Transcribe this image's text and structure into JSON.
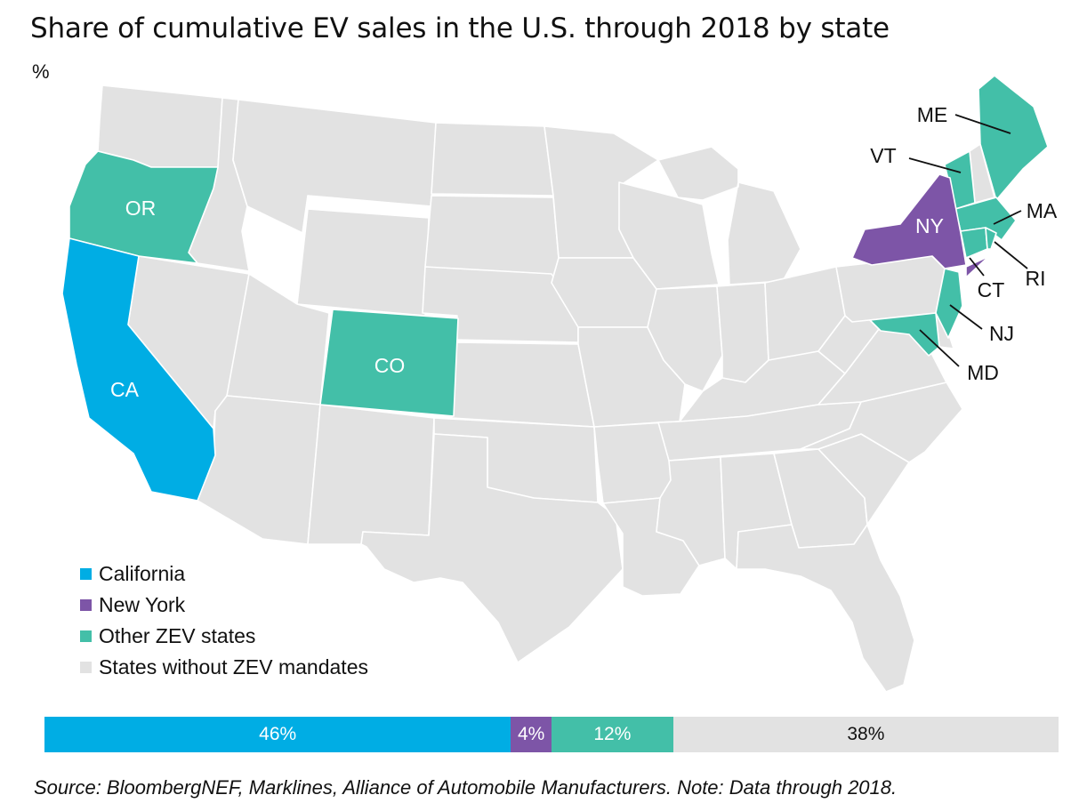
{
  "title": "Share of cumulative EV sales in the U.S. through 2018 by state",
  "unit": "%",
  "colors": {
    "california": "#00ade4",
    "new_york": "#7d55a7",
    "other_zev": "#43bfa8",
    "no_zev": "#e2e2e2",
    "border": "#ffffff"
  },
  "map": {
    "state_labels": {
      "or": "OR",
      "ca": "CA",
      "co": "CO",
      "ny": "NY",
      "me": "ME",
      "vt": "VT",
      "ma": "MA",
      "ri": "RI",
      "ct": "CT",
      "nj": "NJ",
      "md": "MD"
    }
  },
  "legend": [
    {
      "label": "California",
      "color": "#00ade4"
    },
    {
      "label": "New York",
      "color": "#7d55a7"
    },
    {
      "label": "Other ZEV states",
      "color": "#43bfa8"
    },
    {
      "label": "States without ZEV mandates",
      "color": "#e2e2e2"
    }
  ],
  "chart_data": {
    "type": "bar",
    "stacked": true,
    "orientation": "horizontal",
    "categories": [
      "California",
      "New York",
      "Other ZEV states",
      "States without ZEV mandates"
    ],
    "values": [
      46,
      4,
      12,
      38
    ],
    "labels": [
      "46%",
      "4%",
      "12%",
      "38%"
    ],
    "colors": [
      "#00ade4",
      "#7d55a7",
      "#43bfa8",
      "#e2e2e2"
    ],
    "label_colors": [
      "#ffffff",
      "#ffffff",
      "#ffffff",
      "#111111"
    ]
  },
  "source": "Source: BloombergNEF, Marklines, Alliance of Automobile Manufacturers. Note: Data through 2018."
}
